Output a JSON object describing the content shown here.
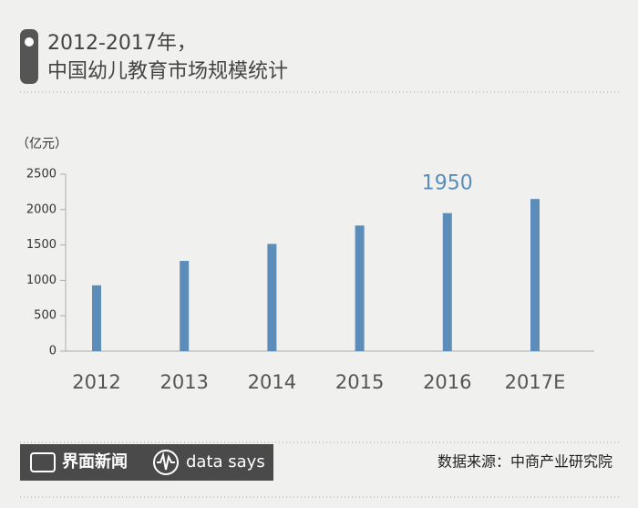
{
  "chart_data": {
    "type": "bar",
    "title": "2012-2017年，",
    "subtitle": "中国幼儿教育市场规模统计",
    "y_label": "（亿元）",
    "categories": [
      "2012",
      "2013",
      "2014",
      "2015",
      "2016",
      "2017E"
    ],
    "values": [
      930,
      1275,
      1515,
      1775,
      1950,
      2150
    ],
    "value_labels": [
      null,
      null,
      null,
      null,
      "1950",
      null
    ],
    "color": "#5b8db8",
    "ylim": [
      0,
      2500
    ],
    "yticks": [
      0,
      500,
      1000,
      1500,
      2000,
      2500
    ],
    "brand": "界面新闻",
    "brand_tag": "data says",
    "source": "数据来源：中商产业研究院"
  }
}
